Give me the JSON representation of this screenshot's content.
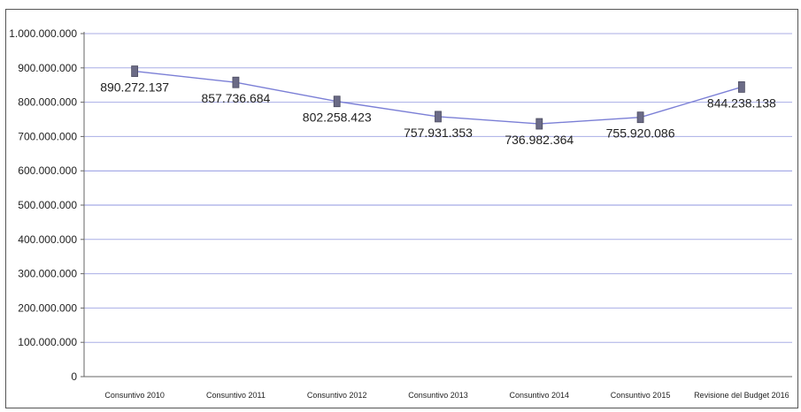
{
  "chart_data": {
    "type": "line",
    "title": "",
    "xlabel": "",
    "ylabel": "",
    "ylim": [
      0,
      1000000000
    ],
    "y_ticks": [
      0,
      100000000,
      200000000,
      300000000,
      400000000,
      500000000,
      600000000,
      700000000,
      800000000,
      900000000,
      1000000000
    ],
    "y_tick_labels": [
      "0",
      "100.000.000",
      "200.000.000",
      "300.000.000",
      "400.000.000",
      "500.000.000",
      "600.000.000",
      "700.000.000",
      "800.000.000",
      "900.000.000",
      "1.000.000.000"
    ],
    "categories": [
      "Consuntivo 2010",
      "Consuntivo 2011",
      "Consuntivo 2012",
      "Consuntivo 2013",
      "Consuntivo 2014",
      "Consuntivo 2015",
      "Revisione del Budget 2016"
    ],
    "series": [
      {
        "values": [
          890272137,
          857736684,
          802258423,
          757931353,
          736982364,
          755920086,
          844238138
        ],
        "data_labels": [
          "890.272.137",
          "857.736.684",
          "802.258.423",
          "757.931.353",
          "736.982.364",
          "755.920.086",
          "844.238.138"
        ]
      }
    ],
    "grid": true,
    "legend": "none",
    "colors": {
      "line": "#7b7fd6",
      "marker": "#6b6b86",
      "grid": "#a9aee6",
      "grid_major": "#8f95e0"
    }
  }
}
